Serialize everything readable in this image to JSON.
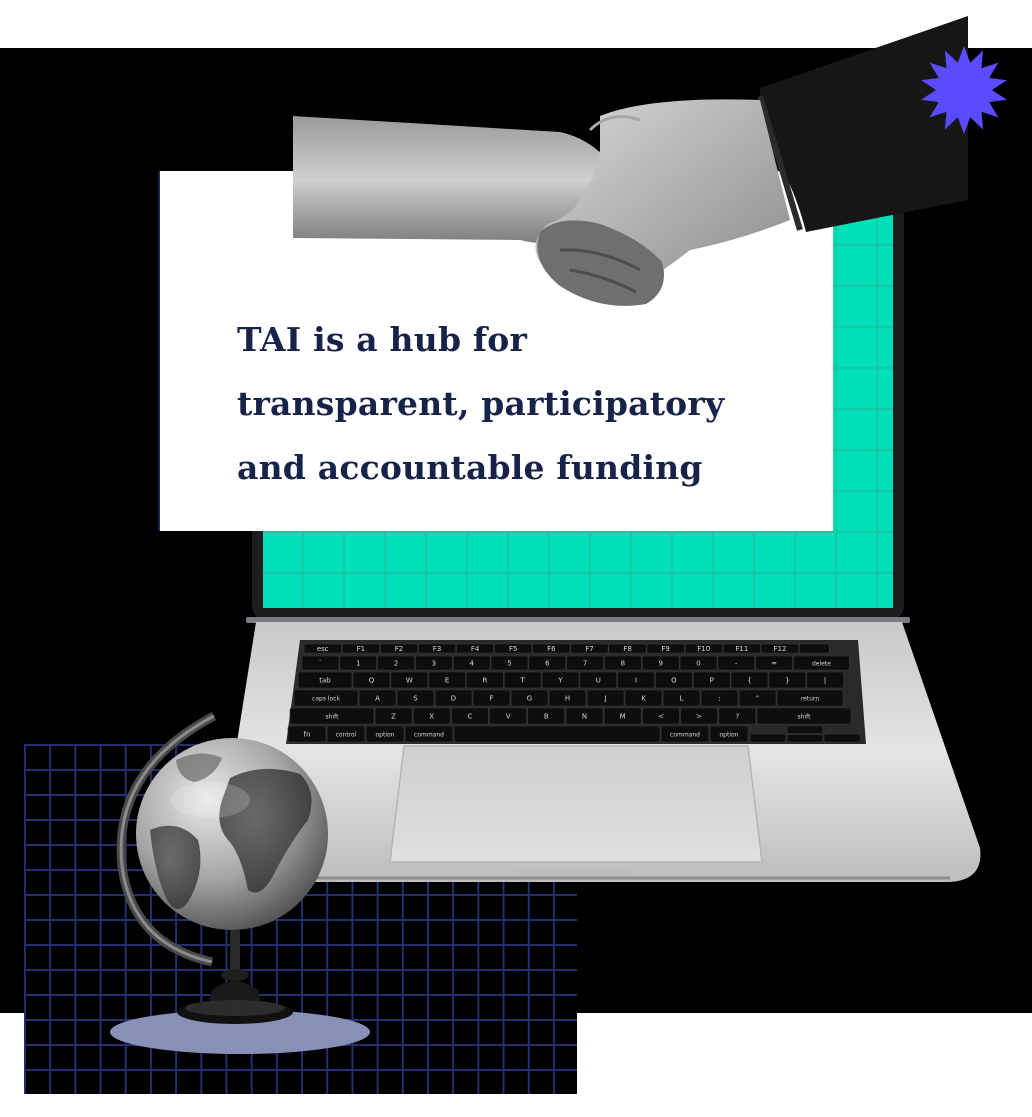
{
  "hero": {
    "headline_lines": [
      "TAI is a hub for",
      "transparent, participatory",
      "and accountable funding"
    ]
  },
  "keyboard": {
    "function_row": [
      "esc",
      "F1",
      "F2",
      "F3",
      "F4",
      "F5",
      "F6",
      "F7",
      "F8",
      "F9",
      "F10",
      "F11",
      "F12"
    ],
    "number_row": [
      "~",
      "!",
      "@",
      "#",
      "$",
      "%",
      "^",
      "&",
      "*",
      "(",
      ")",
      "_",
      "+"
    ],
    "number_row_sub": [
      "`",
      "1",
      "2",
      "3",
      "4",
      "5",
      "6",
      "7",
      "8",
      "9",
      "0",
      "-",
      "="
    ],
    "top_row": [
      "Q",
      "W",
      "E",
      "R",
      "T",
      "Y",
      "U",
      "I",
      "O",
      "P",
      "{",
      "}",
      "|"
    ],
    "home_row": [
      "A",
      "S",
      "D",
      "F",
      "G",
      "H",
      "J",
      "K",
      "L",
      ":",
      "\""
    ],
    "bottom_row": [
      "Z",
      "X",
      "C",
      "V",
      "B",
      "N",
      "M",
      "<",
      ">",
      "?"
    ],
    "mod_keys": {
      "delete": "delete",
      "tab": "tab",
      "caps": "caps lock",
      "return": "return",
      "shift_left": "shift",
      "shift_right": "shift",
      "fn": "fn",
      "control": "control",
      "option_left": "option",
      "command_left": "command",
      "command_right": "command",
      "option_right": "option"
    }
  },
  "colors": {
    "screen_teal": "#00e0b8",
    "headline_navy": "#18234a",
    "star_purple": "#5b4bff",
    "grid_navy": "#22306e"
  }
}
